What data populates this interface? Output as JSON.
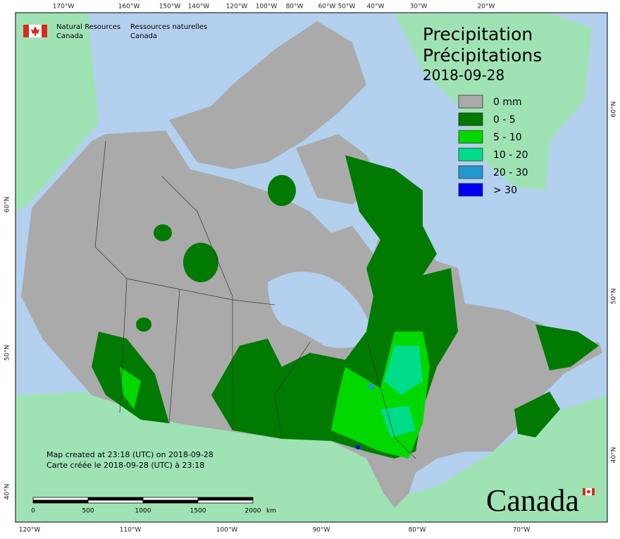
{
  "header": {
    "title_en": "Precipitation",
    "title_fr": "Précipitations",
    "date": "2018-09-28"
  },
  "agency": {
    "en": [
      "Natural Resources",
      "Canada"
    ],
    "fr": [
      "Ressources naturelles",
      "Canada"
    ]
  },
  "legend": {
    "items": [
      {
        "label": "0 mm",
        "color": "#aaaaaa"
      },
      {
        "label": "0 - 5",
        "color": "#007a00"
      },
      {
        "label": "5 - 10",
        "color": "#00d800"
      },
      {
        "label": "10 - 20",
        "color": "#00dd88"
      },
      {
        "label": "20 - 30",
        "color": "#2299cc"
      },
      {
        "label": "> 30",
        "color": "#0000f0"
      }
    ]
  },
  "notes": [
    "Map created at 23:18 (UTC) on 2018-09-28",
    "Carte créée le 2018-09-28 (UTC) à 23:18"
  ],
  "scale": {
    "ticks": [
      "0",
      "500",
      "1000",
      "1500",
      "2000"
    ],
    "unit": "km"
  },
  "graticule": {
    "top": [
      "170°W",
      "160°W",
      "150°W",
      "140°W",
      "120°W",
      "100°W",
      "80°W",
      "60°W",
      "50°W",
      "40°W",
      "30°W",
      "20°W"
    ],
    "bottom": [
      "120°W",
      "110°W",
      "100°W",
      "90°W",
      "80°W",
      "70°W"
    ],
    "left": [
      "60°N",
      "50°N",
      "40°N"
    ],
    "right": [
      "60°N",
      "50°N",
      "40°N"
    ]
  },
  "wordmark": "Canada"
}
